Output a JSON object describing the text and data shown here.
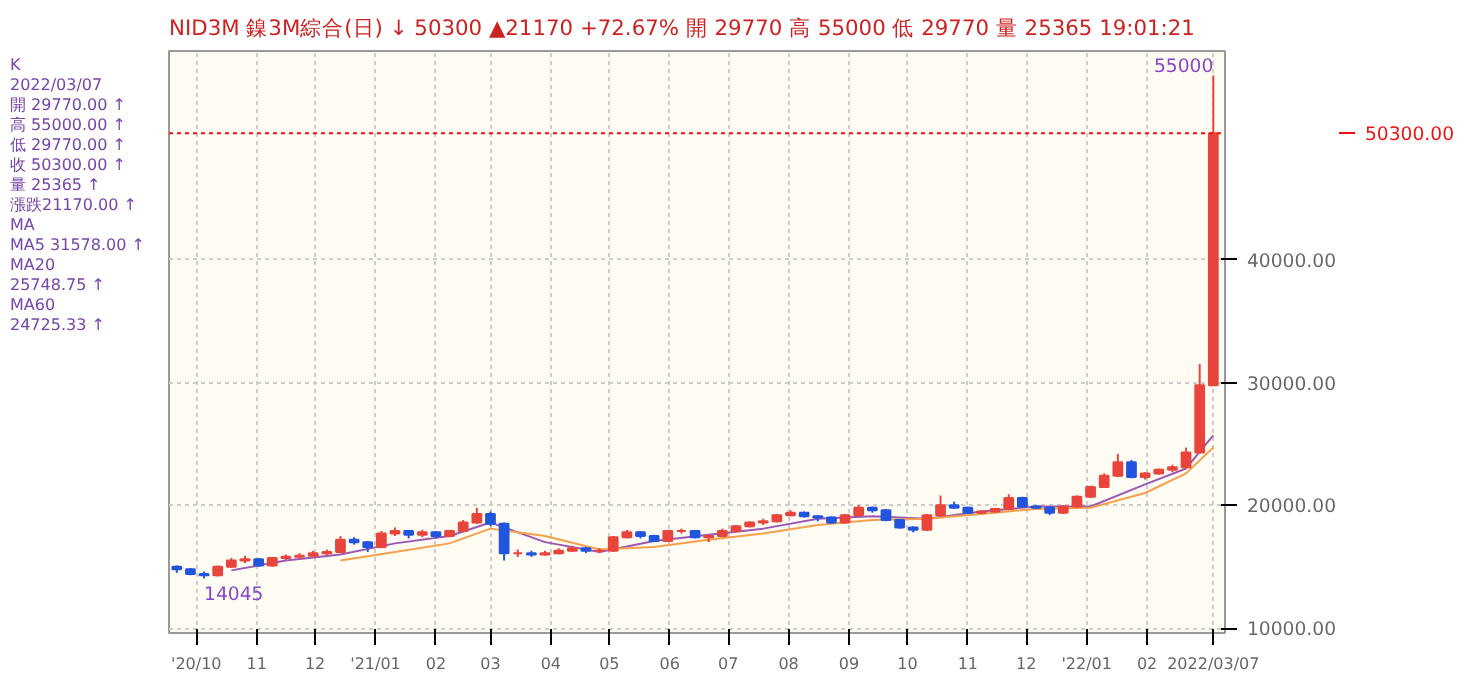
{
  "chart_data": {
    "type": "candlestick",
    "title": "NID3M   鎳3M綜合(日) ↓   50300   ▲21170   +72.67%   開 29770   高 55000   低 29770   量 25365   19:01:21",
    "x": [
      "2020-09-21",
      "2020-09-28",
      "2020-10-05",
      "2020-10-12",
      "2020-10-19",
      "2020-10-26",
      "2020-11-02",
      "2020-11-09",
      "2020-11-16",
      "2020-11-23",
      "2020-11-30",
      "2020-12-07",
      "2020-12-14",
      "2020-12-21",
      "2020-12-28",
      "2021-01-04",
      "2021-01-11",
      "2021-01-18",
      "2021-01-25",
      "2021-02-01",
      "2021-02-08",
      "2021-02-15",
      "2021-02-22",
      "2021-03-01",
      "2021-03-08",
      "2021-03-15",
      "2021-03-22",
      "2021-03-29",
      "2021-04-05",
      "2021-04-12",
      "2021-04-19",
      "2021-04-26",
      "2021-05-03",
      "2021-05-10",
      "2021-05-17",
      "2021-05-24",
      "2021-05-31",
      "2021-06-07",
      "2021-06-14",
      "2021-06-21",
      "2021-06-28",
      "2021-07-05",
      "2021-07-12",
      "2021-07-19",
      "2021-07-26",
      "2021-08-02",
      "2021-08-09",
      "2021-08-16",
      "2021-08-23",
      "2021-08-30",
      "2021-09-06",
      "2021-09-13",
      "2021-09-20",
      "2021-09-27",
      "2021-10-04",
      "2021-10-11",
      "2021-10-18",
      "2021-10-25",
      "2021-11-01",
      "2021-11-08",
      "2021-11-15",
      "2021-11-22",
      "2021-11-29",
      "2021-12-06",
      "2021-12-13",
      "2021-12-20",
      "2021-12-27",
      "2022-01-03",
      "2022-01-10",
      "2022-01-17",
      "2022-01-24",
      "2022-01-31",
      "2022-02-07",
      "2022-02-14",
      "2022-02-21",
      "2022-02-28",
      "2022-03-07"
    ],
    "ohlc": [
      [
        15000,
        15100,
        14500,
        14800
      ],
      [
        14800,
        14900,
        14300,
        14400
      ],
      [
        14400,
        14600,
        14045,
        14300
      ],
      [
        14300,
        15100,
        14200,
        15000
      ],
      [
        15000,
        15700,
        14900,
        15500
      ],
      [
        15500,
        15900,
        15300,
        15600
      ],
      [
        15600,
        15700,
        15000,
        15100
      ],
      [
        15100,
        15800,
        15000,
        15700
      ],
      [
        15700,
        16000,
        15500,
        15800
      ],
      [
        15800,
        16100,
        15600,
        15900
      ],
      [
        15900,
        16300,
        15800,
        16100
      ],
      [
        16100,
        16400,
        15900,
        16200
      ],
      [
        16200,
        17500,
        16100,
        17200
      ],
      [
        17200,
        17400,
        16800,
        17000
      ],
      [
        17000,
        17100,
        16200,
        16600
      ],
      [
        16600,
        17900,
        16500,
        17700
      ],
      [
        17700,
        18200,
        17500,
        17900
      ],
      [
        17900,
        18000,
        17300,
        17600
      ],
      [
        17600,
        18000,
        17400,
        17800
      ],
      [
        17800,
        17900,
        17300,
        17500
      ],
      [
        17500,
        18000,
        17400,
        17900
      ],
      [
        17900,
        18800,
        17800,
        18600
      ],
      [
        18600,
        19800,
        18500,
        19300
      ],
      [
        19300,
        19500,
        18300,
        18500
      ],
      [
        18500,
        18600,
        15500,
        16100
      ],
      [
        16100,
        16400,
        15800,
        16100
      ],
      [
        16100,
        16300,
        15800,
        16000
      ],
      [
        16000,
        16300,
        15900,
        16100
      ],
      [
        16100,
        16500,
        16000,
        16300
      ],
      [
        16300,
        16700,
        16200,
        16500
      ],
      [
        16500,
        16600,
        16100,
        16300
      ],
      [
        16300,
        16500,
        16100,
        16300
      ],
      [
        16300,
        17500,
        16200,
        17400
      ],
      [
        17400,
        18000,
        17300,
        17800
      ],
      [
        17800,
        17900,
        17300,
        17500
      ],
      [
        17500,
        17600,
        17000,
        17100
      ],
      [
        17100,
        18000,
        17000,
        17900
      ],
      [
        17900,
        18100,
        17700,
        17900
      ],
      [
        17900,
        18000,
        17300,
        17400
      ],
      [
        17400,
        17600,
        17000,
        17500
      ],
      [
        17500,
        18100,
        17400,
        17900
      ],
      [
        17900,
        18400,
        17800,
        18300
      ],
      [
        18300,
        18700,
        18200,
        18600
      ],
      [
        18600,
        18900,
        18400,
        18700
      ],
      [
        18700,
        19300,
        18600,
        19200
      ],
      [
        19200,
        19600,
        19100,
        19400
      ],
      [
        19400,
        19500,
        19000,
        19100
      ],
      [
        19100,
        19200,
        18700,
        19000
      ],
      [
        19000,
        19100,
        18500,
        18600
      ],
      [
        18600,
        19300,
        18500,
        19200
      ],
      [
        19200,
        20000,
        19100,
        19800
      ],
      [
        19800,
        19900,
        19400,
        19600
      ],
      [
        19600,
        19700,
        18700,
        18800
      ],
      [
        18800,
        18900,
        18100,
        18200
      ],
      [
        18200,
        18300,
        17800,
        18000
      ],
      [
        18000,
        19300,
        17900,
        19200
      ],
      [
        19200,
        20800,
        19100,
        20000
      ],
      [
        20000,
        20300,
        19700,
        19800
      ],
      [
        19800,
        19900,
        19300,
        19400
      ],
      [
        19400,
        19600,
        19300,
        19500
      ],
      [
        19500,
        19800,
        19400,
        19700
      ],
      [
        19700,
        20900,
        19600,
        20600
      ],
      [
        20600,
        20700,
        19800,
        19900
      ],
      [
        19900,
        20000,
        19700,
        19800
      ],
      [
        19800,
        19900,
        19200,
        19400
      ],
      [
        19400,
        20000,
        19300,
        19900
      ],
      [
        19900,
        20800,
        19800,
        20700
      ],
      [
        20700,
        21600,
        20600,
        21500
      ],
      [
        21500,
        22600,
        21400,
        22400
      ],
      [
        22400,
        24200,
        22300,
        23500
      ],
      [
        23500,
        23700,
        22200,
        22300
      ],
      [
        22300,
        22700,
        22100,
        22600
      ],
      [
        22600,
        23000,
        22500,
        22900
      ],
      [
        22900,
        23300,
        22700,
        23100
      ],
      [
        23100,
        24700,
        23000,
        24300
      ],
      [
        24300,
        31500,
        24200,
        29770
      ],
      [
        29770,
        55000,
        29770,
        50300
      ]
    ],
    "series": [
      {
        "type": "line",
        "color": "#9b59b6",
        "x": [
          "2020-10-19",
          "2020-11-16",
          "2020-12-14",
          "2021-01-11",
          "2021-02-08",
          "2021-03-01",
          "2021-03-29",
          "2021-04-26",
          "2021-05-24",
          "2021-06-21",
          "2021-07-19",
          "2021-08-16",
          "2021-09-13",
          "2021-10-11",
          "2021-11-08",
          "2021-12-06",
          "2022-01-03",
          "2022-01-31",
          "2022-02-21",
          "2022-03-07"
        ],
        "values": [
          14700,
          15500,
          16000,
          16900,
          17500,
          18600,
          17000,
          16200,
          17100,
          17600,
          18100,
          18900,
          19100,
          18900,
          19500,
          19900,
          19900,
          21700,
          23000,
          25700
        ]
      },
      {
        "type": "line",
        "color": "#f5a04a",
        "x": [
          "2020-12-14",
          "2021-01-11",
          "2021-02-08",
          "2021-03-01",
          "2021-03-29",
          "2021-04-26",
          "2021-05-24",
          "2021-06-21",
          "2021-07-19",
          "2021-08-16",
          "2021-09-13",
          "2021-10-11",
          "2021-11-08",
          "2021-12-06",
          "2022-01-03",
          "2022-01-31",
          "2022-02-21",
          "2022-03-07"
        ],
        "values": [
          15500,
          16200,
          16900,
          18100,
          17500,
          16400,
          16600,
          17200,
          17700,
          18400,
          18800,
          18900,
          19300,
          19700,
          19800,
          21000,
          22600,
          24700
        ]
      }
    ],
    "annotations": [
      "K",
      "2022/03/07",
      "開 29770.00 ↑",
      "高 55000.00 ↑",
      "低 29770.00 ↑",
      "收 50300.00 ↑",
      "量 25365 ↑",
      "漲跌21170.00 ↑",
      "MA",
      "MA5 31578.00 ↑",
      "MA20",
      "25748.75 ↑",
      "MA60",
      "24725.33 ↑",
      {
        "text": "55000",
        "x": "2022-03-07",
        "y": 55000
      },
      {
        "text": "14045",
        "x": "2020-10-05",
        "y": 14045
      }
    ],
    "ref_lines": [
      {
        "axis": "y",
        "value": 50300,
        "label": "50300.00",
        "color": "#ee1111"
      }
    ],
    "xlim": [
      "2020-09-17",
      "2022-03-13"
    ],
    "xticks": [
      {
        "value": "2020-10-01",
        "label": "'20/10"
      },
      {
        "value": "2020-11-01",
        "label": "11"
      },
      {
        "value": "2020-12-01",
        "label": "12"
      },
      {
        "value": "2021-01-01",
        "label": "'21/01"
      },
      {
        "value": "2021-02-01",
        "label": "02"
      },
      {
        "value": "2021-03-01",
        "label": "03"
      },
      {
        "value": "2021-04-01",
        "label": "04"
      },
      {
        "value": "2021-05-01",
        "label": "05"
      },
      {
        "value": "2021-06-01",
        "label": "06"
      },
      {
        "value": "2021-07-01",
        "label": "07"
      },
      {
        "value": "2021-08-01",
        "label": "08"
      },
      {
        "value": "2021-09-01",
        "label": "09"
      },
      {
        "value": "2021-10-01",
        "label": "10"
      },
      {
        "value": "2021-11-01",
        "label": "11"
      },
      {
        "value": "2021-12-01",
        "label": "12"
      },
      {
        "value": "2022-01-01",
        "label": "'22/01"
      },
      {
        "value": "2022-02-01",
        "label": "02"
      },
      {
        "value": "2022-03-07",
        "label": "2022/03/07"
      }
    ],
    "ylim": [
      9600,
      57000
    ],
    "yticks": [
      {
        "value": 10000,
        "label": "10000.00"
      },
      {
        "value": 20000,
        "label": "20000.00"
      },
      {
        "value": 30000,
        "label": "30000.00"
      },
      {
        "value": 40000,
        "label": "40000.00"
      }
    ],
    "grid": true
  }
}
